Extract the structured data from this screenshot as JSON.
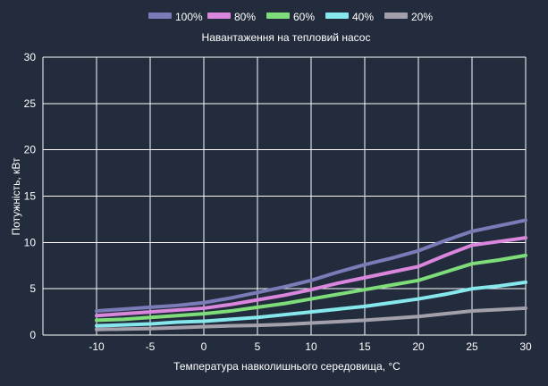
{
  "chart_data": {
    "type": "line",
    "title": "Навантаження на тепловий насос",
    "xlabel": "Температура навколишнього середовища, °C",
    "ylabel": "Потужність, кВт",
    "xlim": [
      -15,
      30
    ],
    "ylim": [
      0,
      30
    ],
    "x_ticks": [
      -10,
      -5,
      0,
      5,
      10,
      15,
      20,
      25,
      30
    ],
    "y_ticks": [
      0,
      5,
      10,
      15,
      20,
      25,
      30
    ],
    "x": [
      -10,
      -7.5,
      -5,
      -2.5,
      0,
      2.5,
      5,
      7.5,
      10,
      12.5,
      15,
      17.5,
      20,
      22.5,
      25,
      27.5,
      30
    ],
    "grid": true,
    "legend_position": "top-center",
    "series": [
      {
        "name": "100%",
        "color": "#7b7bb8",
        "values": [
          2.6,
          2.8,
          3.0,
          3.2,
          3.5,
          4.0,
          4.6,
          5.2,
          5.9,
          6.8,
          7.6,
          8.3,
          9.1,
          10.2,
          11.2,
          11.8,
          12.4
        ]
      },
      {
        "name": "80%",
        "color": "#d986dc",
        "values": [
          2.1,
          2.3,
          2.5,
          2.7,
          2.9,
          3.3,
          3.8,
          4.3,
          4.9,
          5.6,
          6.2,
          6.8,
          7.4,
          8.6,
          9.7,
          10.1,
          10.5
        ]
      },
      {
        "name": "60%",
        "color": "#7edc7a",
        "values": [
          1.6,
          1.7,
          1.9,
          2.1,
          2.3,
          2.6,
          3.0,
          3.4,
          3.9,
          4.4,
          4.9,
          5.4,
          5.9,
          6.8,
          7.7,
          8.1,
          8.6
        ]
      },
      {
        "name": "40%",
        "color": "#86e8ec",
        "values": [
          1.0,
          1.1,
          1.2,
          1.4,
          1.5,
          1.7,
          1.9,
          2.2,
          2.5,
          2.8,
          3.1,
          3.5,
          3.9,
          4.4,
          5.0,
          5.3,
          5.7
        ]
      },
      {
        "name": "20%",
        "color": "#a3a0ab",
        "values": [
          0.6,
          0.65,
          0.7,
          0.8,
          0.9,
          1.0,
          1.05,
          1.15,
          1.3,
          1.45,
          1.6,
          1.8,
          2.0,
          2.3,
          2.6,
          2.75,
          2.9
        ]
      }
    ]
  }
}
